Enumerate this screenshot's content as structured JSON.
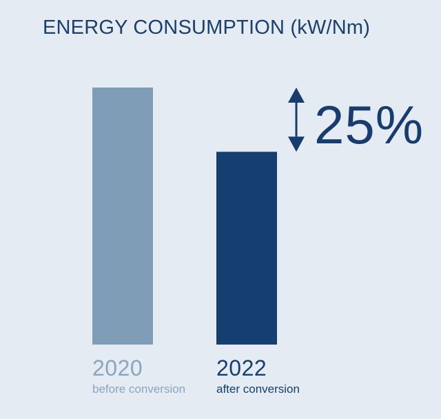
{
  "chart_data": {
    "type": "bar",
    "title": "ENERGY CONSUMPTION (kW/Nm)",
    "categories": [
      "2020",
      "2022"
    ],
    "category_subtitles": [
      "before conversion",
      "after conversion"
    ],
    "values": [
      100,
      75
    ],
    "ylim": [
      0,
      100
    ],
    "grid": false,
    "xlabel": "",
    "ylabel": "",
    "annotation": {
      "text": "25%",
      "between": [
        "2020",
        "2022"
      ]
    }
  },
  "colors": {
    "background": "#e5ebf2",
    "bar_before": "#809db8",
    "bar_after": "#153f70",
    "title": "#1a3f6b",
    "label_before": "#8aa5bf",
    "label_after": "#153f70",
    "arrow": "#173d6e"
  },
  "icons": {
    "difference_indicator": "double-arrow-vertical-icon"
  }
}
